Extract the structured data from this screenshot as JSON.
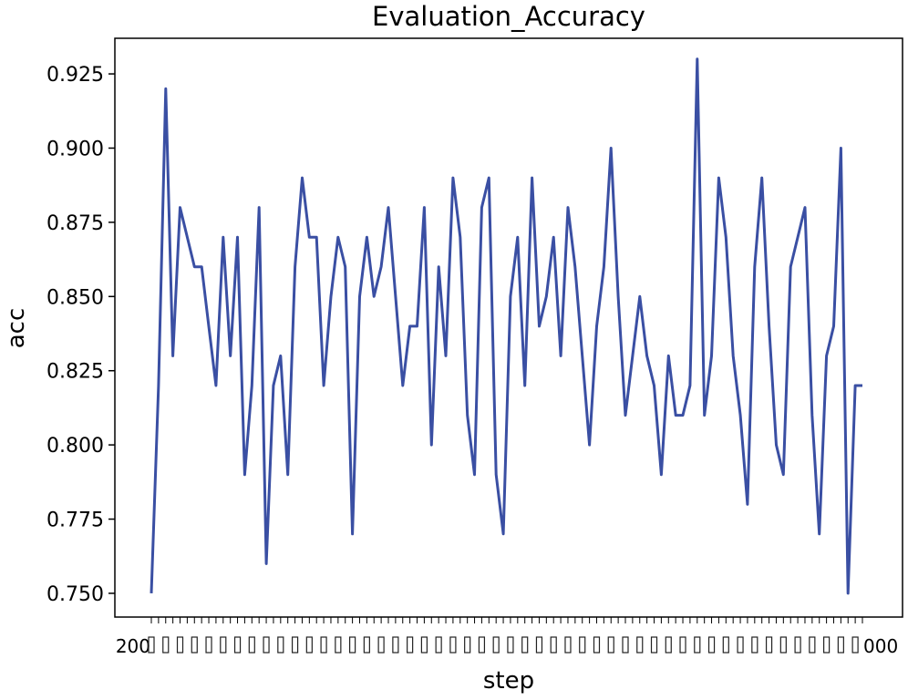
{
  "chart_data": {
    "type": "line",
    "title": "Evaluation_Accuracy",
    "xlabel": "step",
    "ylabel": "acc",
    "yticks": [
      "0.750",
      "0.775",
      "0.800",
      "0.825",
      "0.850",
      "0.875",
      "0.900",
      "0.925"
    ],
    "ylim": [
      0.742,
      0.937
    ],
    "grid": false,
    "line_color": "#3a4fa3",
    "x_start_label": "200",
    "x_end_label": "000",
    "series": [
      {
        "values": [
          0.75,
          0.82,
          0.92,
          0.83,
          0.88,
          0.87,
          0.86,
          0.86,
          0.84,
          0.82,
          0.87,
          0.83,
          0.87,
          0.79,
          0.82,
          0.88,
          0.76,
          0.82,
          0.83,
          0.79,
          0.86,
          0.89,
          0.87,
          0.87,
          0.82,
          0.85,
          0.87,
          0.86,
          0.77,
          0.85,
          0.87,
          0.85,
          0.86,
          0.88,
          0.85,
          0.82,
          0.84,
          0.84,
          0.88,
          0.8,
          0.86,
          0.83,
          0.89,
          0.87,
          0.81,
          0.79,
          0.88,
          0.89,
          0.79,
          0.77,
          0.85,
          0.87,
          0.82,
          0.89,
          0.84,
          0.85,
          0.87,
          0.83,
          0.88,
          0.86,
          0.83,
          0.8,
          0.84,
          0.86,
          0.9,
          0.85,
          0.81,
          0.83,
          0.85,
          0.83,
          0.82,
          0.79,
          0.83,
          0.81,
          0.81,
          0.82,
          0.93,
          0.81,
          0.83,
          0.89,
          0.87,
          0.83,
          0.81,
          0.78,
          0.86,
          0.89,
          0.84,
          0.8,
          0.79,
          0.86,
          0.87,
          0.88,
          0.81,
          0.77,
          0.83,
          0.84,
          0.9,
          0.75,
          0.82,
          0.82
        ]
      }
    ]
  }
}
